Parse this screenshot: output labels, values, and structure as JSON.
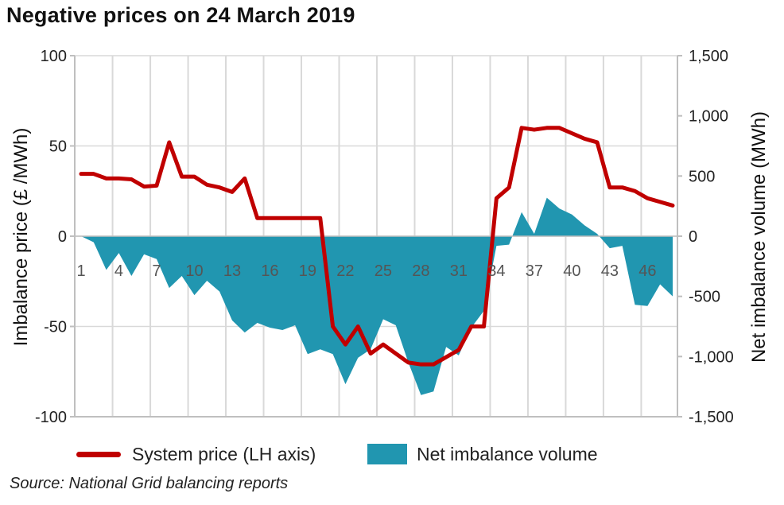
{
  "header": {
    "title": "Negative prices on 24 March 2019"
  },
  "legend": {
    "price_label": "System price (LH axis)",
    "volume_label": "Net imbalance volume"
  },
  "source": {
    "text": "Source: National Grid balancing reports"
  },
  "colors": {
    "price_line": "#c00000",
    "volume_area": "#2196b0",
    "grid": "#d9d9d9",
    "axis": "#bfbfbf"
  },
  "chart_data": {
    "type": "line",
    "title": "Negative prices on 24 March 2019",
    "x_tick_labels": [
      "1",
      "4",
      "7",
      "10",
      "13",
      "16",
      "19",
      "22",
      "25",
      "28",
      "31",
      "34",
      "37",
      "40",
      "43",
      "46"
    ],
    "x": [
      1,
      2,
      3,
      4,
      5,
      6,
      7,
      8,
      9,
      10,
      11,
      12,
      13,
      14,
      15,
      16,
      17,
      18,
      19,
      20,
      21,
      22,
      23,
      24,
      25,
      26,
      27,
      28,
      29,
      30,
      31,
      32,
      33,
      34,
      35,
      36,
      37,
      38,
      39,
      40,
      41,
      42,
      43,
      44,
      45,
      46,
      47,
      48
    ],
    "y_left": {
      "label": "Imbalance price (£ /MWh)",
      "ylim": [
        -100,
        100
      ],
      "ticks": [
        100,
        50,
        0,
        -50,
        -100
      ]
    },
    "y_right": {
      "label": "Net imbalance volume (MWh)",
      "ylim": [
        -1500,
        1500
      ],
      "ticks": [
        "1,500",
        "1,000",
        "500",
        "0",
        "-500",
        "-1,000",
        "-1,500"
      ]
    },
    "series": [
      {
        "name": "System price (LH axis)",
        "type": "line",
        "axis": "left",
        "values": [
          34.5,
          34.5,
          32,
          32,
          31.5,
          27.5,
          28,
          52,
          33,
          33,
          28.5,
          27,
          24.5,
          32,
          10,
          10,
          10,
          10,
          10,
          10,
          -50,
          -60,
          -50,
          -65,
          -60,
          -65,
          -70,
          -71,
          -71,
          -67,
          -63,
          -50,
          -50,
          21,
          27,
          60,
          59,
          60,
          60,
          57,
          54,
          52,
          27,
          27,
          25,
          21,
          19,
          17
        ]
      },
      {
        "name": "Net imbalance volume",
        "type": "area",
        "axis": "right",
        "values": [
          0,
          -50,
          -280,
          -140,
          -330,
          -150,
          -190,
          -430,
          -330,
          -490,
          -370,
          -460,
          -700,
          -800,
          -720,
          -760,
          -780,
          -740,
          -980,
          -940,
          -980,
          -1230,
          -1010,
          -940,
          -690,
          -740,
          -1050,
          -1320,
          -1290,
          -920,
          -990,
          -760,
          -620,
          -80,
          -70,
          200,
          20,
          320,
          230,
          180,
          90,
          20,
          -100,
          -80,
          -570,
          -580,
          -400,
          -500
        ]
      }
    ],
    "grid": true,
    "legend_position": "bottom"
  }
}
